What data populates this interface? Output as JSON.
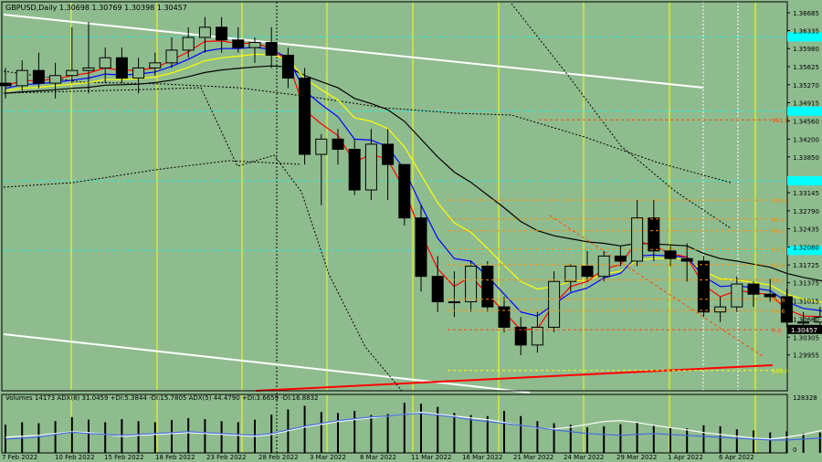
{
  "header": {
    "price_title": "GBPUSD,Daily  1.30698 1.30769 1.30398 1.30457",
    "indicator_title": "Volumes 14173  ADX(8) 31.0459 +DI:5.3844 -DI:15.7805  ADX(5) 44.4790 +DI:3.6659 -DI:16.8832"
  },
  "colors": {
    "background": "#8fbc8f",
    "bull_body": "#8fbc8f",
    "bear_body": "#000000",
    "period_separator": "#ffff00",
    "trend_line": "#ffffff",
    "support_line": "#ff0000",
    "current_price_box": "#000000",
    "cyan_level": "#00ffff",
    "fibo": "#ff8c00",
    "ema_red": "#ff0000",
    "ema_blue": "#0000ff",
    "ema_yellow": "#ffff00",
    "ema_black": "#000000",
    "volume_bar": "#000000",
    "adx_blue": "#4169e1",
    "adx_white": "#ffffff"
  },
  "chart_data": {
    "type": "candlestick",
    "symbol": "GBPUSD",
    "timeframe": "Daily",
    "ohlc_header": {
      "open": 1.30698,
      "high": 1.30769,
      "low": 1.30398,
      "close": 1.30457
    },
    "current_price": "1.30457",
    "ylim": [
      1.2925,
      1.369
    ],
    "price_ticks": [
      "1.36685",
      "1.36335",
      "1.35980",
      "1.35625",
      "1.35270",
      "1.34915",
      "1.34560",
      "1.34200",
      "1.33850",
      "1.33145",
      "1.32790",
      "1.32435",
      "1.32080",
      "1.31725",
      "1.31375",
      "1.31015",
      "1.30660",
      "1.30305",
      "1.29955"
    ],
    "cyan_levels": [
      1.3621,
      1.3475,
      1.3338,
      1.3201
    ],
    "date_labels": [
      "7 Feb 2022",
      "10 Feb 2022",
      "15 Feb 2022",
      "18 Feb 2022",
      "23 Feb 2022",
      "28 Feb 2022",
      "3 Mar 2022",
      "8 Mar 2022",
      "11 Mar 2022",
      "16 Mar 2022",
      "21 Mar 2022",
      "24 Mar 2022",
      "29 Mar 2022",
      "1 Apr 2022",
      "6 Apr 2022"
    ],
    "candles": [
      [
        1.353,
        1.356,
        1.35,
        1.3525
      ],
      [
        1.3525,
        1.3575,
        1.3515,
        1.3555
      ],
      [
        1.3555,
        1.359,
        1.352,
        1.353
      ],
      [
        1.353,
        1.357,
        1.35,
        1.3545
      ],
      [
        1.3545,
        1.364,
        1.353,
        1.3555
      ],
      [
        1.3555,
        1.365,
        1.351,
        1.356
      ],
      [
        1.356,
        1.36,
        1.353,
        1.358
      ],
      [
        1.358,
        1.36,
        1.353,
        1.354
      ],
      [
        1.354,
        1.358,
        1.351,
        1.356
      ],
      [
        1.356,
        1.359,
        1.3545,
        1.357
      ],
      [
        1.357,
        1.362,
        1.356,
        1.3595
      ],
      [
        1.3595,
        1.364,
        1.358,
        1.362
      ],
      [
        1.362,
        1.366,
        1.359,
        1.364
      ],
      [
        1.364,
        1.366,
        1.359,
        1.3615
      ],
      [
        1.3615,
        1.364,
        1.359,
        1.36
      ],
      [
        1.36,
        1.362,
        1.357,
        1.361
      ],
      [
        1.361,
        1.364,
        1.356,
        1.3585
      ],
      [
        1.3585,
        1.36,
        1.352,
        1.354
      ],
      [
        1.354,
        1.356,
        1.337,
        1.339
      ],
      [
        1.339,
        1.343,
        1.329,
        1.342
      ],
      [
        1.342,
        1.344,
        1.337,
        1.34
      ],
      [
        1.34,
        1.342,
        1.331,
        1.332
      ],
      [
        1.332,
        1.344,
        1.33,
        1.341
      ],
      [
        1.341,
        1.344,
        1.33,
        1.337
      ],
      [
        1.337,
        1.337,
        1.325,
        1.3265
      ],
      [
        1.3265,
        1.329,
        1.312,
        1.315
      ],
      [
        1.315,
        1.319,
        1.308,
        1.31
      ],
      [
        1.31,
        1.316,
        1.307,
        1.31
      ],
      [
        1.31,
        1.318,
        1.308,
        1.317
      ],
      [
        1.317,
        1.318,
        1.308,
        1.309
      ],
      [
        1.309,
        1.311,
        1.304,
        1.305
      ],
      [
        1.305,
        1.307,
        1.2995,
        1.3015
      ],
      [
        1.3015,
        1.308,
        1.3,
        1.305
      ],
      [
        1.305,
        1.316,
        1.304,
        1.314
      ],
      [
        1.314,
        1.3175,
        1.312,
        1.317
      ],
      [
        1.317,
        1.32,
        1.314,
        1.315
      ],
      [
        1.315,
        1.32,
        1.314,
        1.319
      ],
      [
        1.319,
        1.321,
        1.317,
        1.318
      ],
      [
        1.318,
        1.33,
        1.317,
        1.3265
      ],
      [
        1.3265,
        1.33,
        1.318,
        1.32
      ],
      [
        1.32,
        1.321,
        1.317,
        1.3185
      ],
      [
        1.3185,
        1.3215,
        1.314,
        1.318
      ],
      [
        1.318,
        1.319,
        1.307,
        1.308
      ],
      [
        1.308,
        1.311,
        1.306,
        1.309
      ],
      [
        1.309,
        1.315,
        1.308,
        1.3135
      ],
      [
        1.3135,
        1.314,
        1.309,
        1.3115
      ],
      [
        1.3115,
        1.3145,
        1.31,
        1.311
      ],
      [
        1.311,
        1.3125,
        1.305,
        1.306
      ],
      [
        1.306,
        1.308,
        1.304,
        1.306
      ],
      [
        1.306,
        1.309,
        1.304,
        1.307
      ],
      [
        1.30698,
        1.30769,
        1.30398,
        1.30457
      ]
    ],
    "ema_red": [
      1.3525,
      1.3535,
      1.3535,
      1.3538,
      1.3545,
      1.355,
      1.356,
      1.3555,
      1.3556,
      1.356,
      1.3575,
      1.3592,
      1.3612,
      1.3613,
      1.3608,
      1.3609,
      1.3598,
      1.3573,
      1.3477,
      1.345,
      1.3427,
      1.3375,
      1.339,
      1.338,
      1.332,
      1.3235,
      1.3165,
      1.313,
      1.315,
      1.3115,
      1.308,
      1.3045,
      1.3047,
      1.3095,
      1.313,
      1.314,
      1.3165,
      1.3173,
      1.322,
      1.321,
      1.3195,
      1.3188,
      1.3133,
      1.311,
      1.3122,
      1.3118,
      1.3114,
      1.3085,
      1.3072,
      1.3071,
      1.3058
    ],
    "ema_blue": [
      1.352,
      1.3527,
      1.3529,
      1.3532,
      1.3536,
      1.354,
      1.3548,
      1.3546,
      1.3548,
      1.3552,
      1.3563,
      1.3577,
      1.3593,
      1.3598,
      1.3598,
      1.3601,
      1.3596,
      1.358,
      1.3515,
      1.3488,
      1.3464,
      1.342,
      1.3418,
      1.3405,
      1.336,
      1.329,
      1.3225,
      1.3185,
      1.318,
      1.315,
      1.3115,
      1.308,
      1.3072,
      1.3095,
      1.3118,
      1.3127,
      1.3147,
      1.3156,
      1.319,
      1.3192,
      1.319,
      1.3188,
      1.315,
      1.313,
      1.3132,
      1.3127,
      1.3122,
      1.31,
      1.3087,
      1.3083,
      1.307
    ],
    "ema_yellow": [
      1.3515,
      1.352,
      1.3522,
      1.3525,
      1.3528,
      1.3531,
      1.3537,
      1.3537,
      1.3539,
      1.3542,
      1.355,
      1.3561,
      1.3574,
      1.358,
      1.3583,
      1.3587,
      1.3586,
      1.3577,
      1.354,
      1.3517,
      1.3497,
      1.3462,
      1.3455,
      1.3441,
      1.3405,
      1.335,
      1.3295,
      1.3255,
      1.3237,
      1.3205,
      1.3172,
      1.314,
      1.3125,
      1.313,
      1.314,
      1.3143,
      1.3155,
      1.316,
      1.3182,
      1.3185,
      1.3185,
      1.3184,
      1.316,
      1.3145,
      1.3143,
      1.3138,
      1.3133,
      1.3115,
      1.3105,
      1.31,
      1.309
    ],
    "ema_black": [
      1.351,
      1.3513,
      1.3515,
      1.3517,
      1.352,
      1.3522,
      1.3526,
      1.3527,
      1.3528,
      1.3531,
      1.3536,
      1.3543,
      1.3551,
      1.3556,
      1.3559,
      1.3562,
      1.3564,
      1.3562,
      1.3545,
      1.3533,
      1.3521,
      1.35,
      1.349,
      1.3478,
      1.3455,
      1.342,
      1.3385,
      1.3355,
      1.3335,
      1.331,
      1.3285,
      1.3258,
      1.324,
      1.323,
      1.3224,
      1.3218,
      1.3215,
      1.321,
      1.3215,
      1.3214,
      1.3212,
      1.321,
      1.3195,
      1.3185,
      1.318,
      1.3174,
      1.3168,
      1.3156,
      1.3148,
      1.3142,
      1.3134
    ],
    "fibo_levels": [
      {
        "label": "161.8",
        "price": 1.3458,
        "color": "#ff4500"
      },
      {
        "label": "100.0",
        "price": 1.33,
        "color": "#ff8c00"
      },
      {
        "label": "85.4",
        "price": 1.3263,
        "color": "#ff8c00"
      },
      {
        "label": "76.4",
        "price": 1.324,
        "color": "#ff8c00"
      },
      {
        "label": "61.8",
        "price": 1.3203,
        "color": "#ff8c00"
      },
      {
        "label": "50.0",
        "price": 1.3173,
        "color": "#ff8c00"
      },
      {
        "label": "38.2",
        "price": 1.3143,
        "color": "#ff8c00"
      },
      {
        "label": "23.6",
        "price": 1.3105,
        "color": "#ff8c00"
      },
      {
        "label": "14.6",
        "price": 1.3083,
        "color": "#ff8c00"
      },
      {
        "label": "0.0",
        "price": 1.3045,
        "color": "#ff4500"
      },
      {
        "label": "100.0",
        "price": 1.2965,
        "color": "#ffff00"
      }
    ],
    "volume_axis": {
      "max_label": "128328",
      "min_label": "0"
    },
    "volumes": [
      0.55,
      0.6,
      0.58,
      0.62,
      0.7,
      0.65,
      0.6,
      0.66,
      0.62,
      0.6,
      0.64,
      0.68,
      0.66,
      0.62,
      0.6,
      0.65,
      0.75,
      0.85,
      0.92,
      0.8,
      0.78,
      0.82,
      0.74,
      0.76,
      0.98,
      0.96,
      0.9,
      0.78,
      0.74,
      0.72,
      0.82,
      0.72,
      0.62,
      0.58,
      0.55,
      0.5,
      0.52,
      0.56,
      0.6,
      0.54,
      0.5,
      0.48,
      0.54,
      0.52,
      0.46,
      0.44,
      0.4,
      0.42,
      0.38,
      0.4,
      0.18
    ],
    "adx_blue": [
      0.3,
      0.32,
      0.35,
      0.4,
      0.45,
      0.42,
      0.4,
      0.38,
      0.4,
      0.42,
      0.44,
      0.46,
      0.44,
      0.42,
      0.4,
      0.38,
      0.42,
      0.5,
      0.58,
      0.64,
      0.7,
      0.74,
      0.78,
      0.8,
      0.84,
      0.86,
      0.82,
      0.78,
      0.72,
      0.68,
      0.64,
      0.6,
      0.55,
      0.5,
      0.46,
      0.42,
      0.4,
      0.38,
      0.4,
      0.42,
      0.4,
      0.38,
      0.36,
      0.34,
      0.32,
      0.3,
      0.28,
      0.28,
      0.3,
      0.32,
      0.36
    ],
    "adx_white": [
      0.34,
      0.36,
      0.38,
      0.42,
      0.46,
      0.44,
      0.4,
      0.36,
      0.38,
      0.4,
      0.42,
      0.44,
      0.42,
      0.4,
      0.38,
      0.36,
      0.4,
      0.48,
      0.56,
      0.62,
      0.68,
      0.72,
      0.76,
      0.8,
      0.84,
      0.88,
      0.84,
      0.8,
      0.76,
      0.72,
      0.66,
      0.6,
      0.54,
      0.52,
      0.56,
      0.62,
      0.68,
      0.7,
      0.66,
      0.6,
      0.55,
      0.5,
      0.44,
      0.4,
      0.36,
      0.32,
      0.3,
      0.34,
      0.4,
      0.48,
      0.56
    ]
  }
}
